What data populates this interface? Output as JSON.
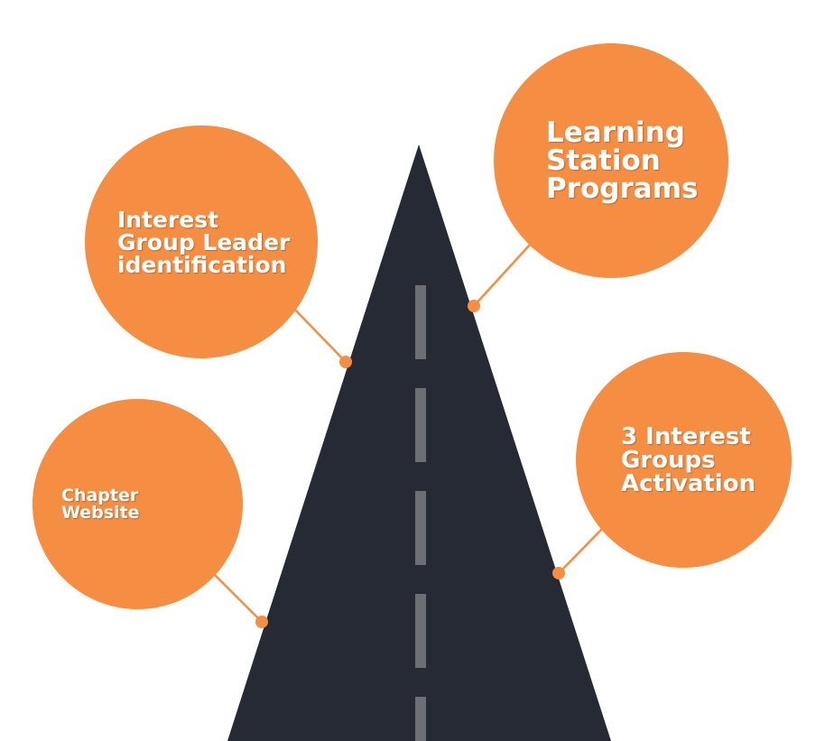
{
  "colors": {
    "bubble": "#F58D42",
    "road": "#252A35",
    "lane_marking": "#6B6E73",
    "connector": "#F58D42",
    "background": "#FFFFFF"
  },
  "milestones": [
    {
      "id": "interest-leader",
      "label": "Interest\nGroup Leader\nidentification"
    },
    {
      "id": "learning",
      "label": "Learning\nStation\nPrograms"
    },
    {
      "id": "chapter",
      "label": "Chapter\nWebsite"
    },
    {
      "id": "activation",
      "label": "3 Interest\nGroups\nActivation"
    }
  ]
}
